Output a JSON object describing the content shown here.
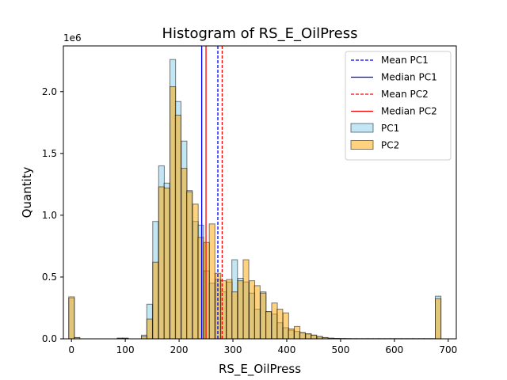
{
  "chart_data": {
    "type": "bar",
    "title": "Histogram of RS_E_OilPress",
    "xlabel": "RS_E_OilPress",
    "ylabel": "Quantity",
    "y_offset_label": "1e6",
    "xlim": [
      -15,
      715
    ],
    "ylim": [
      0,
      2.37
    ],
    "bin_width": 10.5,
    "x_ticks": [
      0,
      100,
      200,
      300,
      400,
      500,
      600,
      700
    ],
    "y_ticks": [
      0.0,
      0.5,
      1.0,
      1.5,
      2.0
    ],
    "y_tick_labels": [
      "0.0",
      "0.5",
      "1.0",
      "1.5",
      "2.0"
    ],
    "grid": false,
    "legend_position": "top-right",
    "bin_starts": [
      -5,
      5,
      85,
      95,
      130,
      140,
      151,
      162,
      172,
      183,
      193,
      204,
      214,
      225,
      235,
      246,
      256,
      267,
      277,
      288,
      298,
      309,
      319,
      330,
      340,
      351,
      361,
      372,
      382,
      393,
      403,
      414,
      424,
      435,
      445,
      456,
      466,
      477,
      487,
      498,
      508,
      519,
      529,
      540,
      550,
      561,
      571,
      582,
      592,
      603,
      613,
      624,
      634,
      645,
      655,
      666,
      676
    ],
    "series": [
      {
        "name": "PC1",
        "color": "#87ceeb",
        "alpha": 0.5,
        "values": [
          0.33,
          0.01,
          0.005,
          0.005,
          0.03,
          0.28,
          0.95,
          1.4,
          1.26,
          2.26,
          1.92,
          1.6,
          1.2,
          0.95,
          0.92,
          0.55,
          0.45,
          0.48,
          0.38,
          0.46,
          0.64,
          0.49,
          0.46,
          0.37,
          0.24,
          0.38,
          0.22,
          0.2,
          0.13,
          0.09,
          0.07,
          0.06,
          0.05,
          0.04,
          0.03,
          0.015,
          0.01,
          0.005,
          0.003,
          0.002,
          0.002,
          0.001,
          0.001,
          0.001,
          0.001,
          0.001,
          0.001,
          0.001,
          0.001,
          0.001,
          0.001,
          0.001,
          0.001,
          0.001,
          0.001,
          0.001,
          0.345
        ]
      },
      {
        "name": "PC2",
        "color": "#ffa500",
        "alpha": 0.5,
        "values": [
          0.34,
          0.01,
          0.005,
          0.005,
          0.02,
          0.16,
          0.62,
          1.23,
          1.22,
          2.04,
          1.81,
          1.38,
          1.19,
          1.09,
          0.82,
          0.78,
          0.93,
          0.53,
          0.47,
          0.48,
          0.38,
          0.47,
          0.64,
          0.47,
          0.43,
          0.37,
          0.22,
          0.29,
          0.24,
          0.21,
          0.08,
          0.1,
          0.05,
          0.04,
          0.03,
          0.02,
          0.01,
          0.005,
          0.003,
          0.002,
          0.001,
          0.001,
          0.001,
          0.001,
          0.001,
          0.001,
          0.001,
          0.001,
          0.001,
          0.001,
          0.001,
          0.001,
          0.001,
          0.001,
          0.001,
          0.001,
          0.325
        ]
      }
    ],
    "reference_lines": [
      {
        "name": "Mean PC1",
        "x": 272,
        "color": "#0000ff",
        "style": "dashed"
      },
      {
        "name": "Median PC1",
        "x": 242,
        "color": "#0000ff",
        "style": "solid"
      },
      {
        "name": "Mean PC2",
        "x": 280,
        "color": "#ff0000",
        "style": "dashed"
      },
      {
        "name": "Median PC2",
        "x": 250,
        "color": "#ff0000",
        "style": "solid"
      }
    ]
  }
}
